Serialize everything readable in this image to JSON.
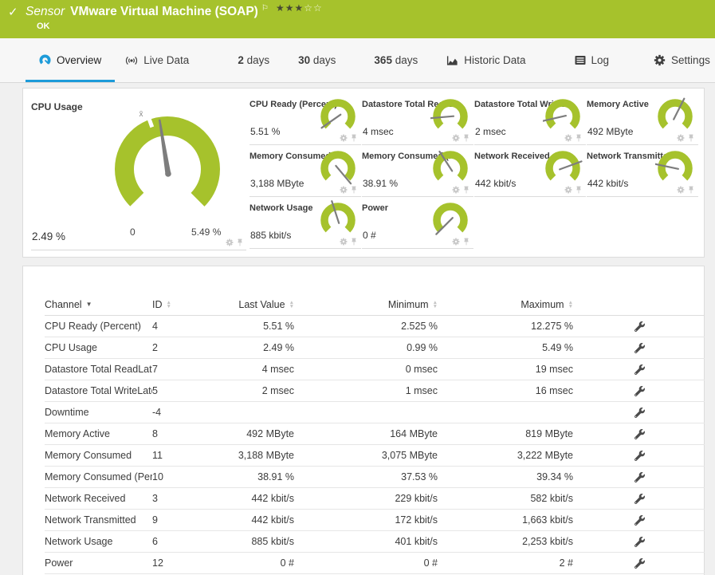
{
  "header": {
    "category": "Sensor",
    "name": "VMware Virtual Machine (SOAP)",
    "status": "OK",
    "flag_icon": "flag-icon",
    "stars_filled": 3,
    "stars_empty": 2
  },
  "tabs": [
    {
      "label": "Overview",
      "icon": "gauge",
      "active": true
    },
    {
      "label": "Live Data",
      "icon": "broadcast",
      "active": false
    },
    {
      "prefix": "2",
      "label": "days",
      "active": false
    },
    {
      "prefix": "30",
      "label": "days",
      "active": false
    },
    {
      "prefix": "365",
      "label": "days",
      "active": false
    },
    {
      "label": "Historic Data",
      "icon": "chart",
      "active": false
    },
    {
      "label": "Log",
      "icon": "log",
      "active": false
    },
    {
      "label": "Settings",
      "icon": "gear",
      "active": false
    }
  ],
  "gauges": {
    "main": {
      "title": "CPU Usage",
      "value": "2.49 %",
      "min": "0",
      "max": "5.49 %",
      "avg_label": "x̄",
      "needle_angle": -9
    },
    "small": [
      {
        "title": "CPU Ready (Percent)",
        "value": "5.51 %",
        "needle_angle": -125
      },
      {
        "title": "Datastore Total ReadLa...",
        "value": "4 msec",
        "needle_angle": -95
      },
      {
        "title": "Datastore Total WriteL...",
        "value": "2 msec",
        "needle_angle": -103
      },
      {
        "title": "Memory Active",
        "value": "492 MByte",
        "needle_angle": 27
      },
      {
        "title": "Memory Consumed",
        "value": "3,188 MByte",
        "needle_angle": 140
      },
      {
        "title": "Memory Consumed (P...",
        "value": "38.91 %",
        "needle_angle": -33
      },
      {
        "title": "Network Received",
        "value": "442 kbit/s",
        "needle_angle": 70
      },
      {
        "title": "Network Transmitted",
        "value": "442 kbit/s",
        "needle_angle": -78
      },
      {
        "title": "Network Usage",
        "value": "885 kbit/s",
        "needle_angle": -18
      },
      {
        "title": "Power",
        "value": "0 #",
        "needle_angle": -135
      }
    ]
  },
  "table": {
    "columns": [
      {
        "label": "Channel",
        "sort": "desc"
      },
      {
        "label": "ID",
        "sort": "both"
      },
      {
        "label": "Last Value",
        "sort": "both"
      },
      {
        "label": "Minimum",
        "sort": "both"
      },
      {
        "label": "Maximum",
        "sort": "both"
      }
    ],
    "rows": [
      {
        "channel": "CPU Ready (Percent)",
        "id": "4",
        "last": "5.51 %",
        "min": "2.525 %",
        "max": "12.275 %"
      },
      {
        "channel": "CPU Usage",
        "id": "2",
        "last": "2.49 %",
        "min": "0.99 %",
        "max": "5.49 %"
      },
      {
        "channel": "Datastore Total ReadLate...",
        "id": "7",
        "last": "4 msec",
        "min": "0 msec",
        "max": "19 msec"
      },
      {
        "channel": "Datastore Total WriteLate...",
        "id": "5",
        "last": "2 msec",
        "min": "1 msec",
        "max": "16 msec"
      },
      {
        "channel": "Downtime",
        "id": "-4",
        "last": "",
        "min": "",
        "max": ""
      },
      {
        "channel": "Memory Active",
        "id": "8",
        "last": "492 MByte",
        "min": "164 MByte",
        "max": "819 MByte"
      },
      {
        "channel": "Memory Consumed",
        "id": "11",
        "last": "3,188 MByte",
        "min": "3,075 MByte",
        "max": "3,222 MByte"
      },
      {
        "channel": "Memory Consumed (Per...",
        "id": "10",
        "last": "38.91 %",
        "min": "37.53 %",
        "max": "39.34 %"
      },
      {
        "channel": "Network Received",
        "id": "3",
        "last": "442 kbit/s",
        "min": "229 kbit/s",
        "max": "582 kbit/s"
      },
      {
        "channel": "Network Transmitted",
        "id": "9",
        "last": "442 kbit/s",
        "min": "172 kbit/s",
        "max": "1,663 kbit/s"
      },
      {
        "channel": "Network Usage",
        "id": "6",
        "last": "885 kbit/s",
        "min": "401 kbit/s",
        "max": "2,253 kbit/s"
      },
      {
        "channel": "Power",
        "id": "12",
        "last": "0 #",
        "min": "0 #",
        "max": "2 #"
      }
    ]
  },
  "colors": {
    "green": "#a6c22c",
    "blue": "#1d9bd9",
    "needle": "#7d7d7d",
    "icon_gray": "#c8c8c8"
  }
}
